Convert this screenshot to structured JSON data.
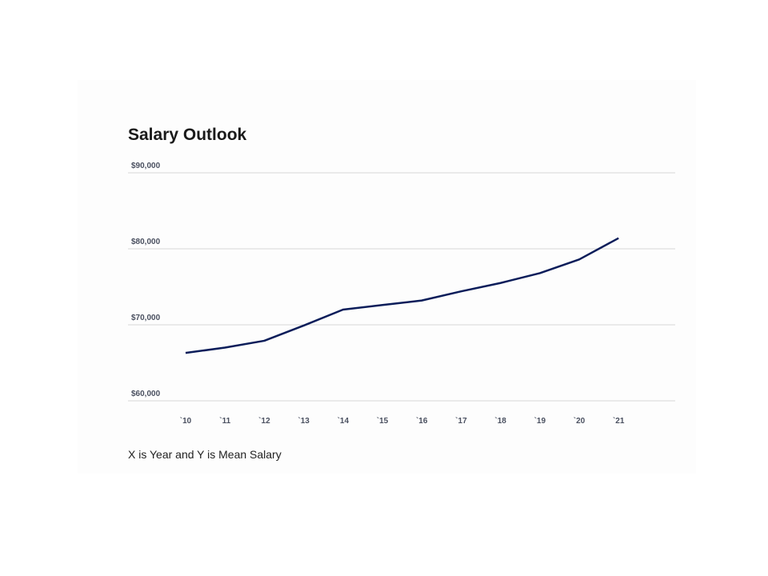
{
  "chart_data": {
    "type": "line",
    "title": "Salary Outlook",
    "categories": [
      "`10",
      "`11",
      "`12",
      "`13",
      "`14",
      "`15",
      "`16",
      "`17",
      "`18",
      "`19",
      "`20",
      "`21"
    ],
    "series": [
      {
        "color": "#0b1d5a",
        "values": [
          66300,
          67000,
          67900,
          69900,
          72000,
          72600,
          73200,
          74400,
          75500,
          76800,
          78600,
          81400
        ]
      }
    ],
    "ylim": [
      60000,
      90000
    ],
    "yticks": [
      {
        "value": 60000,
        "label": "$60,000"
      },
      {
        "value": 70000,
        "label": "$70,000"
      },
      {
        "value": 80000,
        "label": "$80,000"
      },
      {
        "value": 90000,
        "label": "$90,000"
      }
    ],
    "grid": true,
    "caption": "X is Year and Y is Mean Salary"
  }
}
